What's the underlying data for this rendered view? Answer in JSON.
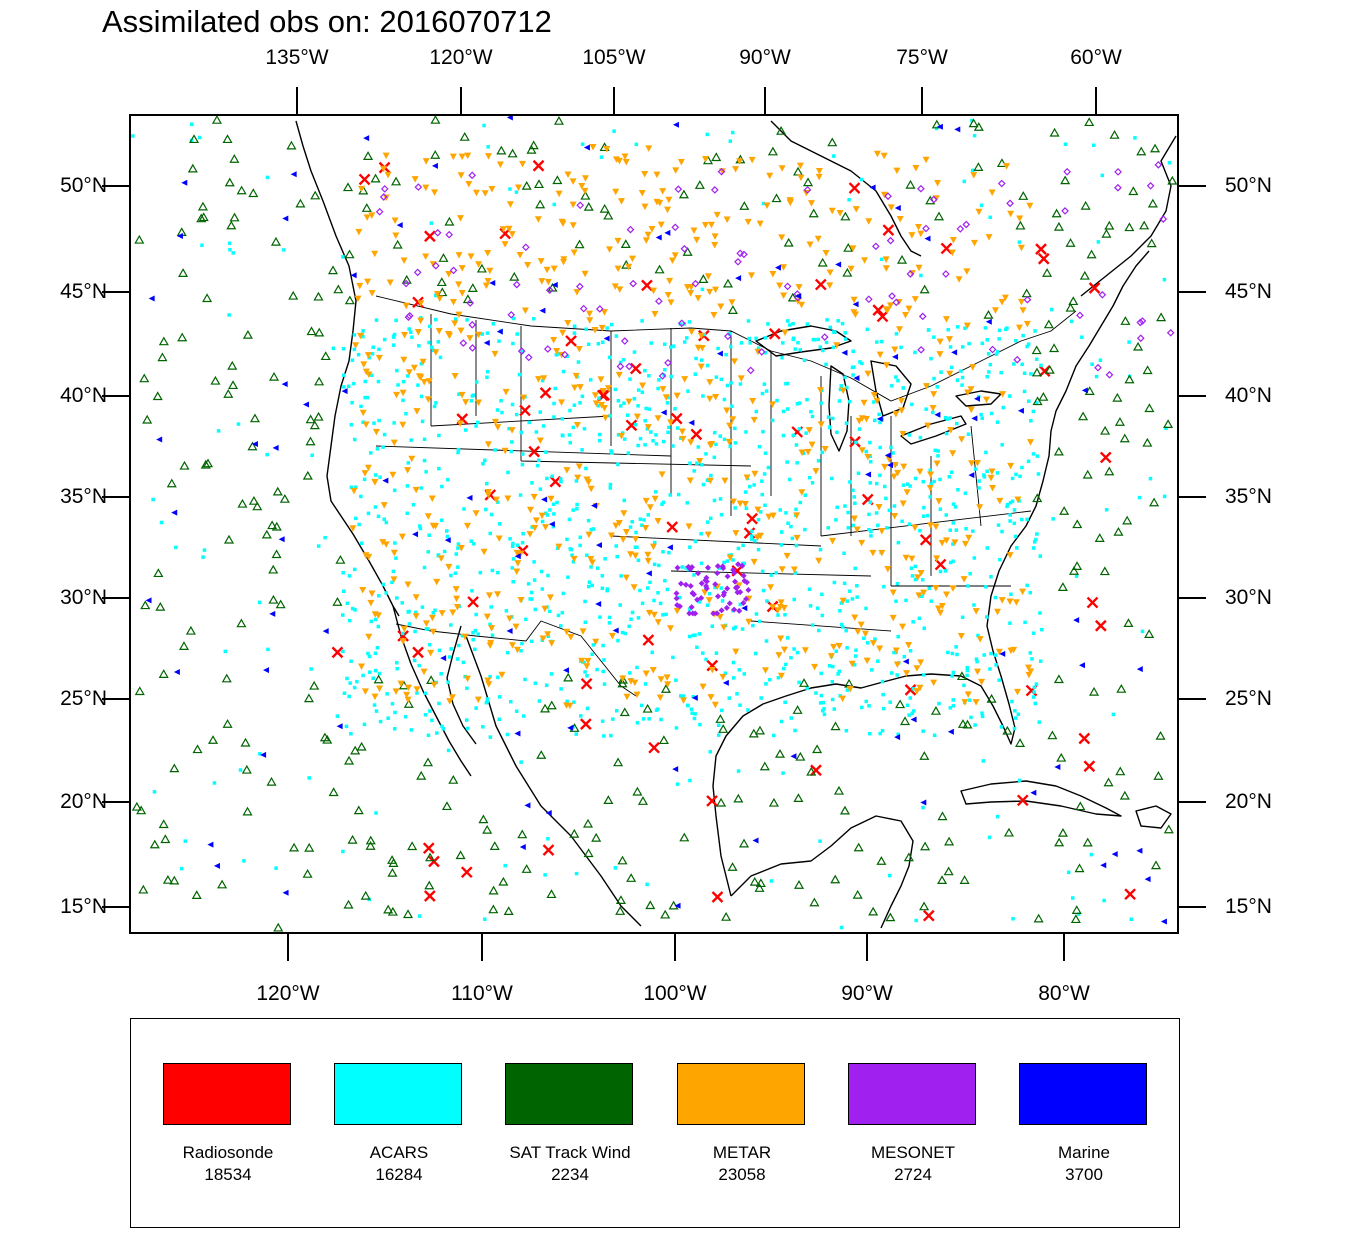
{
  "title": "Assimilated obs on: 2016070712",
  "top_axis_labels": [
    "135°W",
    "120°W",
    "105°W",
    "90°W",
    "75°W",
    "60°W"
  ],
  "bottom_axis_labels": [
    "120°W",
    "110°W",
    "100°W",
    "90°W",
    "80°W"
  ],
  "left_axis_labels": [
    "50°N",
    "45°N",
    "40°N",
    "35°N",
    "30°N",
    "25°N",
    "20°N",
    "15°N"
  ],
  "right_axis_labels": [
    "50°N",
    "45°N",
    "40°N",
    "35°N",
    "30°N",
    "25°N",
    "20°N",
    "15°N"
  ],
  "legend": [
    {
      "label": "Radiosonde",
      "count": "18534",
      "color": "#ff0000"
    },
    {
      "label": "ACARS",
      "count": "16284",
      "color": "#00ffff"
    },
    {
      "label": "SAT Track Wind",
      "count": "2234",
      "color": "#006400"
    },
    {
      "label": "METAR",
      "count": "23058",
      "color": "#ffa500"
    },
    {
      "label": "MESONET",
      "count": "2724",
      "color": "#a020f0"
    },
    {
      "label": "Marine",
      "count": "3700",
      "color": "#0000ff"
    }
  ],
  "colors": {
    "radiosonde": "#ff0000",
    "acars": "#00ffff",
    "sat_track_wind": "#006400",
    "metar": "#ffa500",
    "mesonet": "#a020f0",
    "marine": "#0000ff",
    "coastline": "#000000"
  }
}
